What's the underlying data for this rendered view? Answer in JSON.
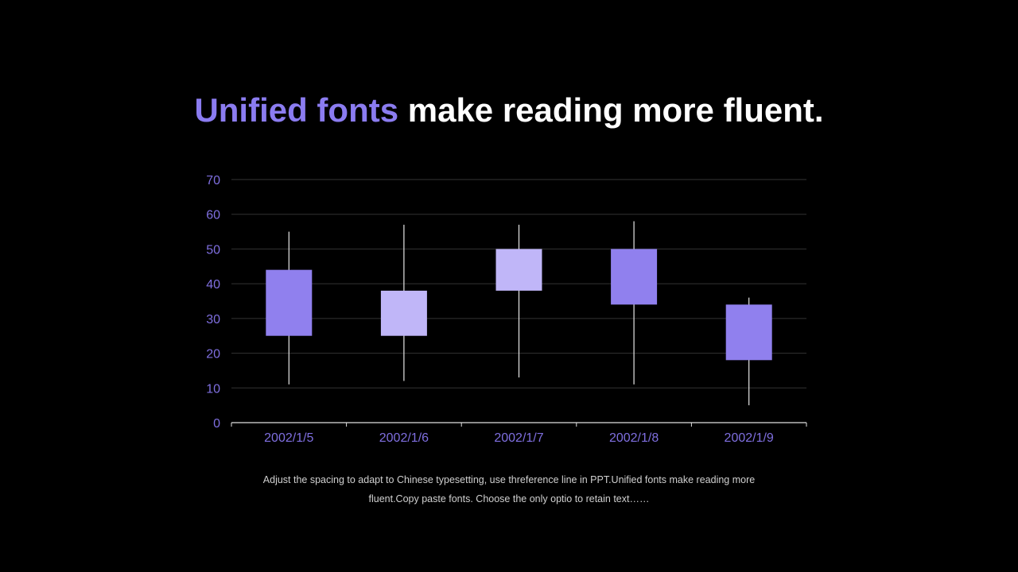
{
  "slide": {
    "title_highlight": "Unified fonts",
    "title_rest": " make reading more fluent.",
    "caption": "Adjust the spacing to adapt to Chinese typesetting, use threference line in PPT.Unified fonts make reading more fluent.Copy paste fonts. Choose the only optio to retain text……"
  },
  "colors": {
    "accent": "#8b7cf0",
    "rising": "#c0b6f8",
    "falling": "#9080ee",
    "wick": "#e6e6e6",
    "grid": "#333333",
    "tick_label": "#7f6fe0",
    "axis": "#e0e0e0"
  },
  "chart_data": {
    "type": "candlestick",
    "categories": [
      "2002/1/5",
      "2002/1/6",
      "2002/1/7",
      "2002/1/8",
      "2002/1/9"
    ],
    "series": [
      {
        "open": [
          44,
          25,
          38,
          50,
          34
        ],
        "close": [
          25,
          38,
          50,
          34,
          18
        ],
        "high": [
          55,
          57,
          57,
          58,
          36
        ],
        "low": [
          11,
          12,
          13,
          11,
          5
        ]
      }
    ],
    "ylim": [
      0,
      70
    ],
    "yticks": [
      0,
      10,
      20,
      30,
      40,
      50,
      60,
      70
    ],
    "grid": true,
    "legend": "none"
  }
}
